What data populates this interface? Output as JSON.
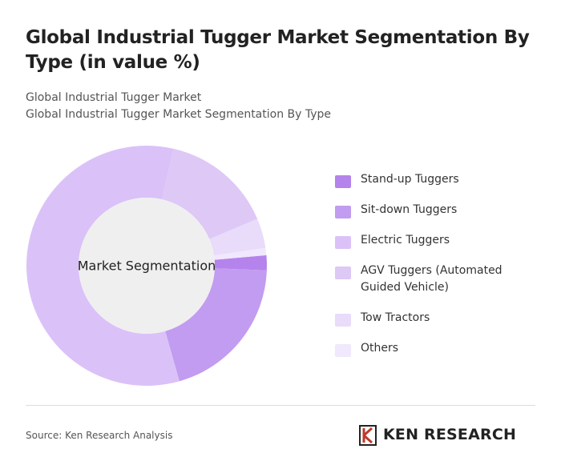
{
  "chart_data": {
    "type": "donut",
    "title": "Global Industrial Tugger Market Segmentation By Type (in value %)",
    "subtitle": [
      "Global Industrial Tugger Market",
      "Global Industrial Tugger Market Segmentation By Type"
    ],
    "center_label": "Market Segmentation",
    "categories": [
      "Stand-up Tuggers",
      "Sit-down Tuggers",
      "Electric Tuggers",
      "AGV Tuggers (Automated Guided Vehicle)",
      "Tow Tractors",
      "Others"
    ],
    "values": [
      2,
      20,
      58,
      15,
      4,
      1
    ],
    "colors": [
      "#b583ec",
      "#c29cf0",
      "#dac2f8",
      "#ddc8f6",
      "#e9dbfa",
      "#f0e8fc"
    ],
    "source": "Source: Ken Research Analysis",
    "brand": "KEN RESEARCH"
  }
}
